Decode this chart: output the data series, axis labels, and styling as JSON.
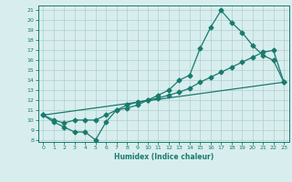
{
  "title": "",
  "xlabel": "Humidex (Indice chaleur)",
  "x": [
    0,
    1,
    2,
    3,
    4,
    5,
    6,
    7,
    8,
    9,
    10,
    11,
    12,
    13,
    14,
    15,
    16,
    17,
    18,
    19,
    20,
    21,
    22,
    23
  ],
  "line1": [
    10.5,
    9.8,
    9.3,
    8.8,
    8.8,
    8.0,
    9.8,
    11.0,
    11.5,
    11.8,
    12.0,
    12.5,
    13.0,
    14.0,
    14.5,
    17.2,
    19.3,
    21.0,
    19.8,
    18.8,
    17.5,
    16.5,
    16.0,
    13.8
  ],
  "line2": [
    10.5,
    10.0,
    9.7,
    10.0,
    10.0,
    10.0,
    10.5,
    11.0,
    11.2,
    11.5,
    12.0,
    12.2,
    12.5,
    12.8,
    13.2,
    13.8,
    14.3,
    14.8,
    15.3,
    15.8,
    16.3,
    16.8,
    17.0,
    13.8
  ],
  "line3_x": [
    0,
    23
  ],
  "line3_y": [
    10.5,
    13.8
  ],
  "line_color": "#1a7a6e",
  "bg_color": "#d8eeee",
  "grid_color": "#b0cece",
  "ylim": [
    7.8,
    21.5
  ],
  "xlim": [
    -0.5,
    23.5
  ],
  "yticks": [
    8,
    9,
    10,
    11,
    12,
    13,
    14,
    15,
    16,
    17,
    18,
    19,
    20,
    21
  ],
  "xticks": [
    0,
    1,
    2,
    3,
    4,
    5,
    6,
    7,
    8,
    9,
    10,
    11,
    12,
    13,
    14,
    15,
    16,
    17,
    18,
    19,
    20,
    21,
    22,
    23
  ]
}
